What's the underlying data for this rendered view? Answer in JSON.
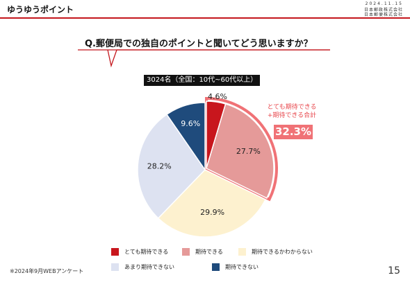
{
  "header": {
    "brand": "ゆうゆうポイント",
    "date": "2024.11.15",
    "company_1": "日本郵政株式会社",
    "company_2": "日本郵便株式会社"
  },
  "question": "Q.郵便局での独自のポイントと聞いてどう思いますか？",
  "sample": "3024名（全国：10代~60代以上）",
  "callout": {
    "label_1": "とても期待できる",
    "label_2": "+期待できる合計",
    "value": "32.3%"
  },
  "chart_data": {
    "type": "pie",
    "categories": [
      "とても期待できる",
      "期待できる",
      "期待できるかわからない",
      "あまり期待できない",
      "期待できない"
    ],
    "values": [
      4.6,
      27.7,
      29.9,
      28.2,
      9.6
    ],
    "value_labels": [
      "4.6%",
      "27.7%",
      "29.9%",
      "28.2%",
      "9.6%"
    ],
    "colors": [
      "#c8161d",
      "#e59a99",
      "#fdf1cf",
      "#dde2f1",
      "#1f4b7c"
    ],
    "highlight_color": "#f07276",
    "start_angle_deg": 0,
    "direction": "clockwise",
    "legend_position": "bottom"
  },
  "footnote": "※2024年9月WEBアンケート",
  "page_number": "15"
}
